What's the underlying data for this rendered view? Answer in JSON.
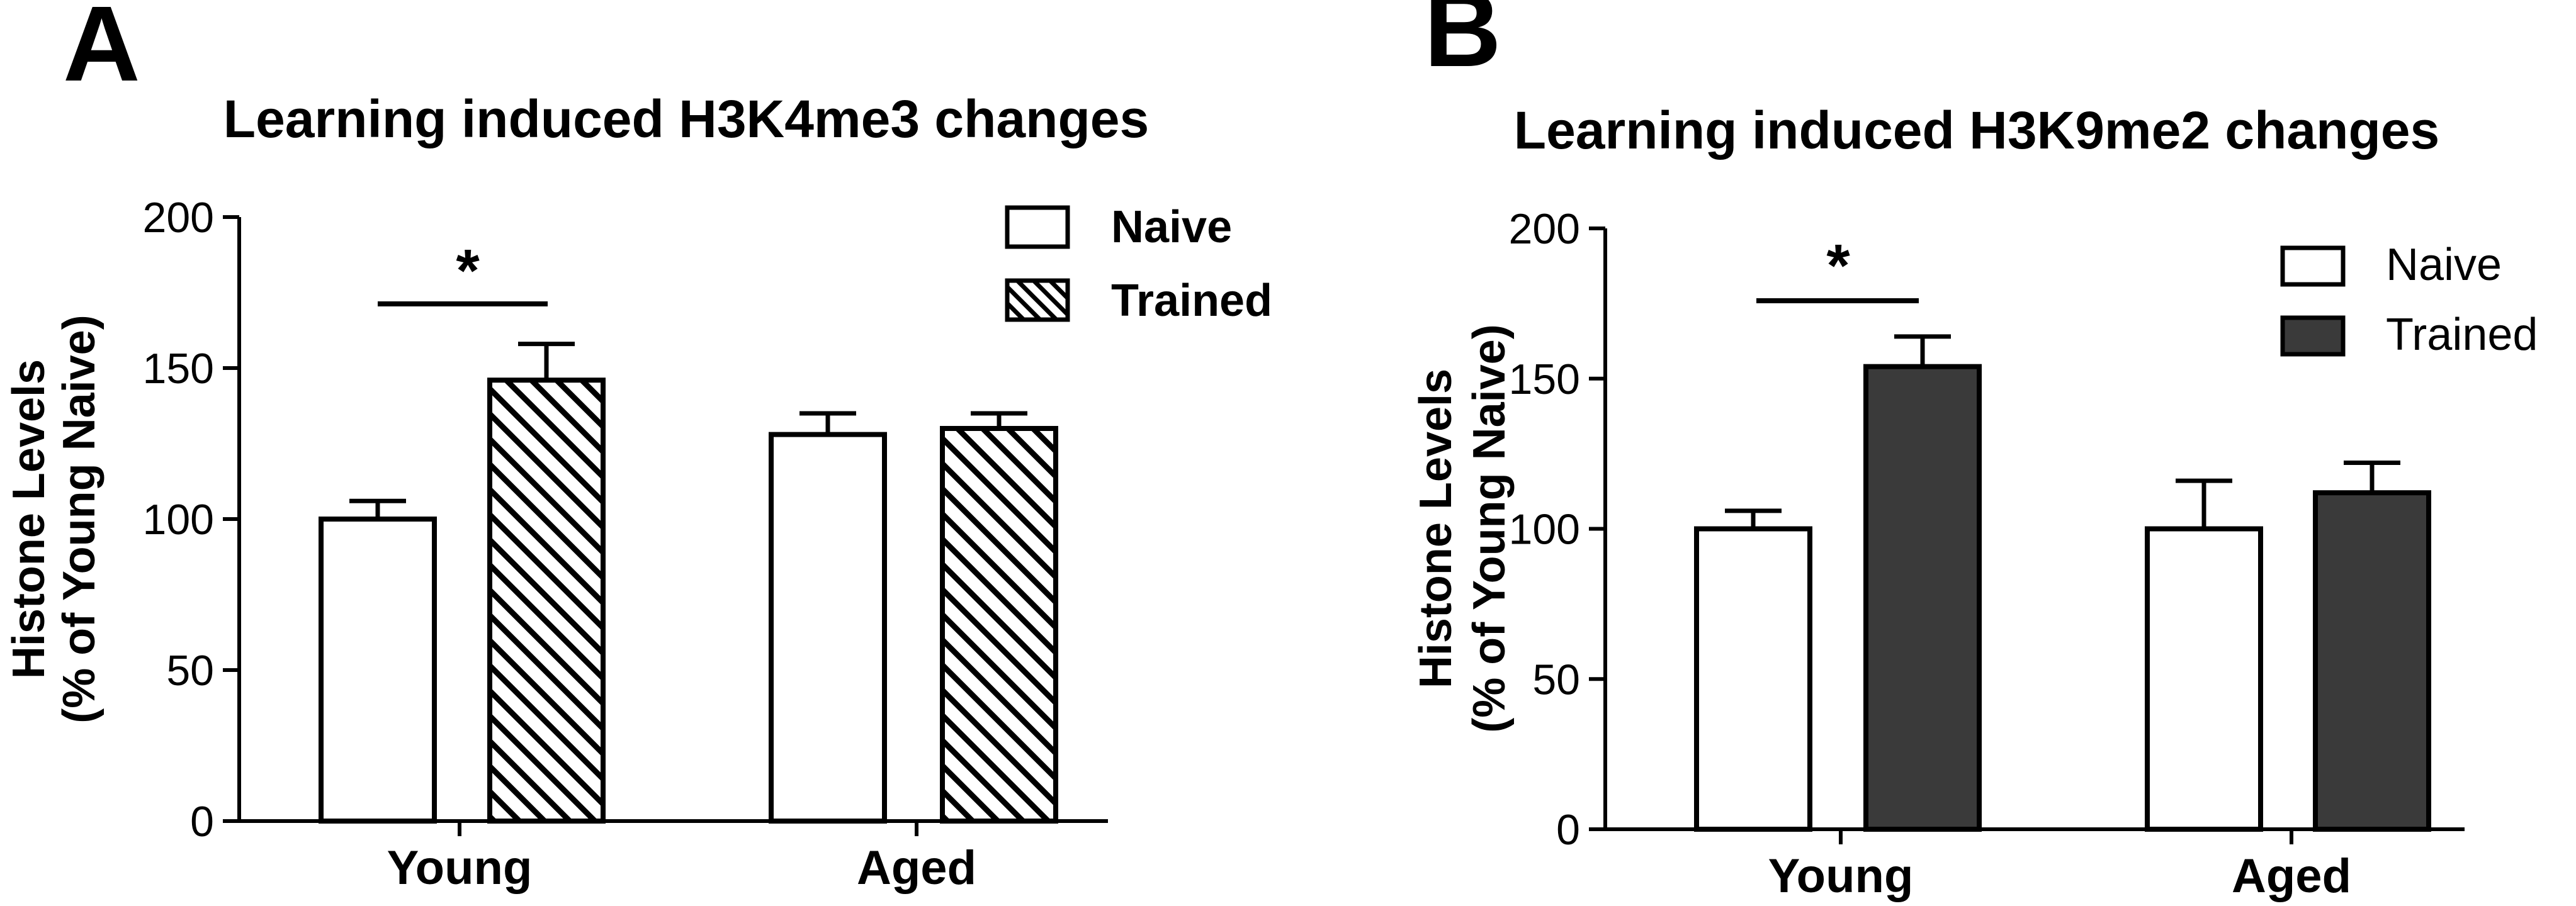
{
  "chart_data": [
    {
      "panel": "A",
      "type": "bar",
      "title": "Learning induced H3K4me3 changes",
      "xlabel": "",
      "ylabel": "Histone Levels",
      "ylabel2": "(% of Young Naive)",
      "ylim": [
        0,
        200
      ],
      "yticks": [
        0,
        50,
        100,
        150,
        200
      ],
      "categories": [
        "Young",
        "Aged"
      ],
      "legend_position": "top-right",
      "series": [
        {
          "name": "Naive",
          "fill": "white",
          "values": [
            100,
            128
          ],
          "errors": [
            6,
            7
          ]
        },
        {
          "name": "Trained",
          "fill": "hatch",
          "values": [
            146,
            130
          ],
          "errors": [
            12,
            5
          ]
        }
      ],
      "significance": [
        {
          "category": "Young",
          "label": "*"
        }
      ]
    },
    {
      "panel": "B",
      "type": "bar",
      "title": "Learning induced H3K9me2 changes",
      "xlabel": "",
      "ylabel": "Histone Levels",
      "ylabel2": "(% of Young Naive)",
      "ylim": [
        0,
        200
      ],
      "yticks": [
        0,
        50,
        100,
        150,
        200
      ],
      "categories": [
        "Young",
        "Aged"
      ],
      "legend_position": "top-right",
      "series": [
        {
          "name": "Naive",
          "fill": "white",
          "values": [
            100,
            100
          ],
          "errors": [
            6,
            16
          ]
        },
        {
          "name": "Trained",
          "fill": "dark",
          "values": [
            154,
            112
          ],
          "errors": [
            10,
            10
          ]
        }
      ],
      "significance": [
        {
          "category": "Young",
          "label": "*"
        }
      ]
    }
  ],
  "colors": {
    "ink": "#000000",
    "background": "#ffffff",
    "naive_fill": "#ffffff",
    "trained_dark_fill": "#3a3a3a"
  }
}
